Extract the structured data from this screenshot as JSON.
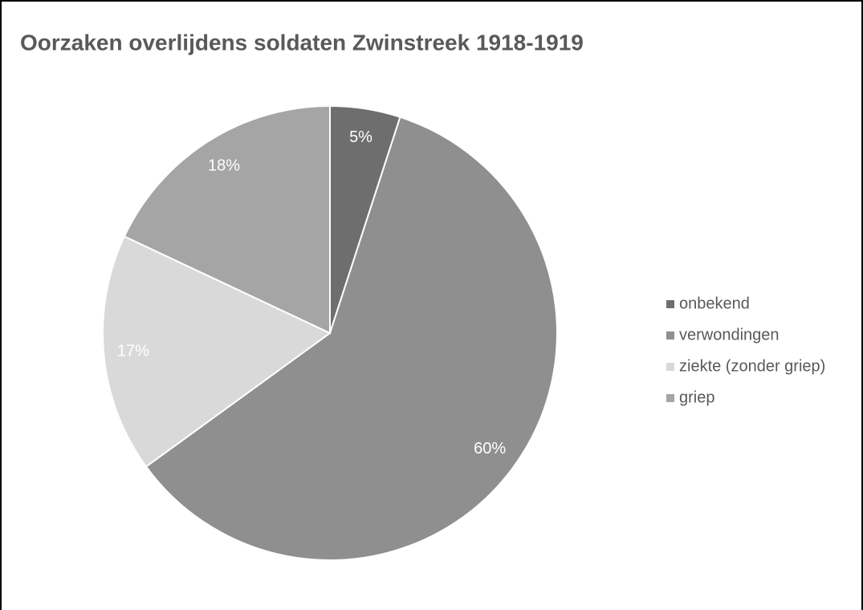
{
  "chart_data": {
    "type": "pie",
    "title": "Oorzaken overlijdens soldaten Zwinstreek 1918-1919",
    "categories": [
      "onbekend",
      "verwondingen",
      "ziekte (zonder griep)",
      "griep"
    ],
    "values": [
      5,
      60,
      17,
      18
    ],
    "value_labels": [
      "5%",
      "60%",
      "17%",
      "18%"
    ],
    "colors": [
      "#6e6e6e",
      "#8f8f8f",
      "#d9d9d9",
      "#a5a5a5"
    ],
    "legend": "right"
  }
}
